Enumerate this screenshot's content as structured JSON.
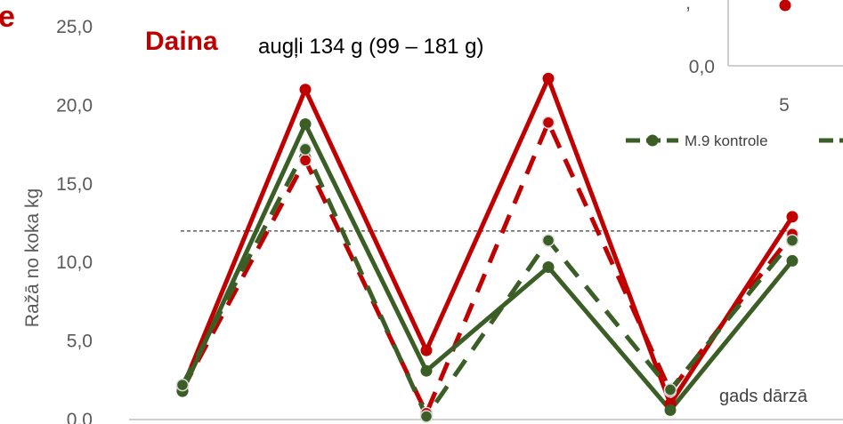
{
  "panel_letter": "e",
  "chart_data": {
    "type": "line",
    "title": "Daina",
    "subtitle": "augļi 134 g (99 – 181 g)",
    "ylabel": "Ražā no koka kg",
    "xlabel": "gads dārzā",
    "ylim": [
      0,
      25
    ],
    "yticks": [
      "0,0",
      "5,0",
      "10,0",
      "15,0",
      "20,0",
      "25,0"
    ],
    "x": [
      1,
      2,
      3,
      4,
      5,
      6
    ],
    "reference_line": 12.0,
    "series": [
      {
        "color": "#c00000",
        "dash": false,
        "values": [
          2.0,
          21.0,
          4.4,
          21.7,
          1.0,
          12.9
        ]
      },
      {
        "color": "#c00000",
        "dash": true,
        "values": [
          1.9,
          16.5,
          0.4,
          18.9,
          1.8,
          11.8
        ]
      },
      {
        "color": "#3a5e25",
        "dash": false,
        "values": [
          1.8,
          18.8,
          3.1,
          9.7,
          0.6,
          10.1
        ]
      },
      {
        "name": "M.9 kontrole",
        "color": "#3a5e25",
        "dash": true,
        "values": [
          2.2,
          17.2,
          0.2,
          11.4,
          1.9,
          11.4
        ]
      }
    ],
    "inset": {
      "ytick": "0,0",
      "ytick_partial": ",",
      "xtick": "5",
      "point_color": "#c00000"
    },
    "legend_position": "right"
  }
}
